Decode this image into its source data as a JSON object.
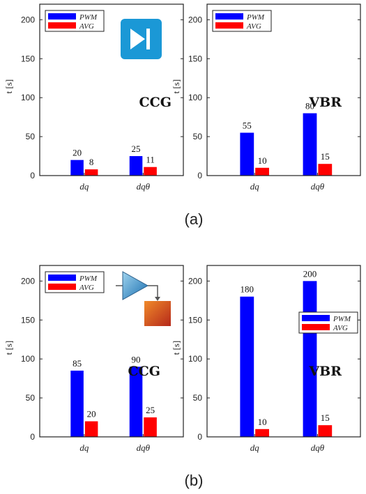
{
  "captions": [
    "(a)",
    "(b)"
  ],
  "legend_labels": [
    "PWM",
    "AVG"
  ],
  "colors": {
    "PWM": "#0000ff",
    "AVG": "#ff0000"
  },
  "icons": [
    "skip-next-icon",
    "amplifier-block-icon"
  ],
  "chart_data": [
    {
      "type": "bar",
      "categories": [
        "dq",
        "dqθ"
      ],
      "series": [
        {
          "name": "PWM",
          "values": [
            20,
            25
          ]
        },
        {
          "name": "AVG",
          "values": [
            8,
            11
          ]
        }
      ],
      "ylabel": "t [s]",
      "ylim": [
        0,
        220
      ],
      "yticks": [
        0,
        50,
        100,
        150,
        200
      ],
      "annotation": "CCG",
      "legend": "top-left"
    },
    {
      "type": "bar",
      "categories": [
        "dq",
        "dqθ"
      ],
      "series": [
        {
          "name": "PWM",
          "values": [
            55,
            80
          ]
        },
        {
          "name": "AVG",
          "values": [
            10,
            15
          ]
        }
      ],
      "ylabel": "t [s]",
      "ylim": [
        0,
        220
      ],
      "yticks": [
        0,
        50,
        100,
        150,
        200
      ],
      "annotation": "VBR",
      "legend": "top-left"
    },
    {
      "type": "bar",
      "categories": [
        "dq",
        "dqθ"
      ],
      "series": [
        {
          "name": "PWM",
          "values": [
            85,
            90
          ]
        },
        {
          "name": "AVG",
          "values": [
            20,
            25
          ]
        }
      ],
      "ylabel": "t [s]",
      "ylim": [
        0,
        220
      ],
      "yticks": [
        0,
        50,
        100,
        150,
        200
      ],
      "annotation": "CCG",
      "legend": "top-left"
    },
    {
      "type": "bar",
      "categories": [
        "dq",
        "dqθ"
      ],
      "series": [
        {
          "name": "PWM",
          "values": [
            180,
            200
          ]
        },
        {
          "name": "AVG",
          "values": [
            10,
            15
          ]
        }
      ],
      "ylabel": "t [s]",
      "ylim": [
        0,
        220
      ],
      "yticks": [
        0,
        50,
        100,
        150,
        200
      ],
      "annotation": "VBR",
      "legend": "center-right"
    }
  ]
}
